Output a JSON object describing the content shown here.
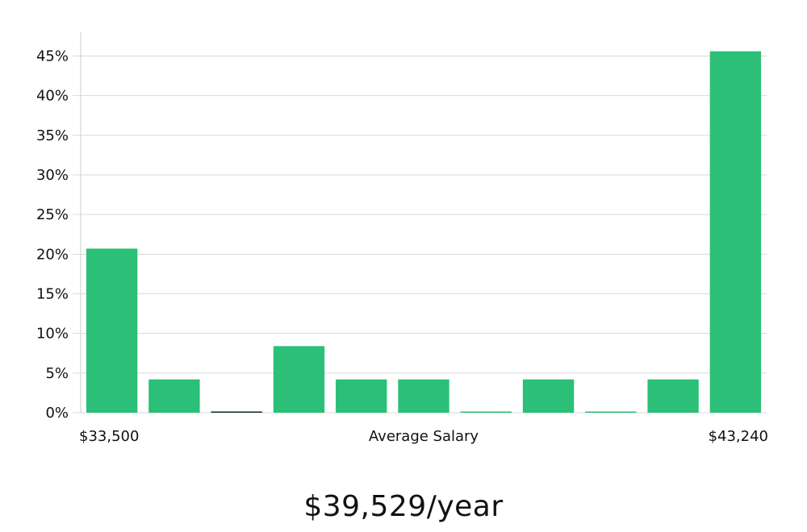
{
  "chart_data": {
    "type": "bar",
    "title": "",
    "xlabel": "Average Salary",
    "ylabel": "",
    "x_start_label": "$33,500",
    "x_end_label": "$43,240",
    "ylim": [
      0,
      48
    ],
    "yticks": [
      0,
      5,
      10,
      15,
      20,
      25,
      30,
      35,
      40,
      45
    ],
    "ytick_suffix": "%",
    "grid": true,
    "bar_color": "#2bbf77",
    "zero_bar_colors": [
      "#2bbf77",
      "#2bbf77",
      "#0d2b1a",
      "#2bbf77",
      "#2bbf77",
      "#2bbf77",
      "#2bbf77",
      "#2bbf77",
      "#2bbf77",
      "#2bbf77",
      "#2bbf77"
    ],
    "values": [
      20.7,
      4.2,
      0,
      8.4,
      4.2,
      4.2,
      0,
      4.2,
      0,
      4.2,
      45.6
    ]
  },
  "summary": {
    "average_salary_text": "$39,529/year"
  }
}
